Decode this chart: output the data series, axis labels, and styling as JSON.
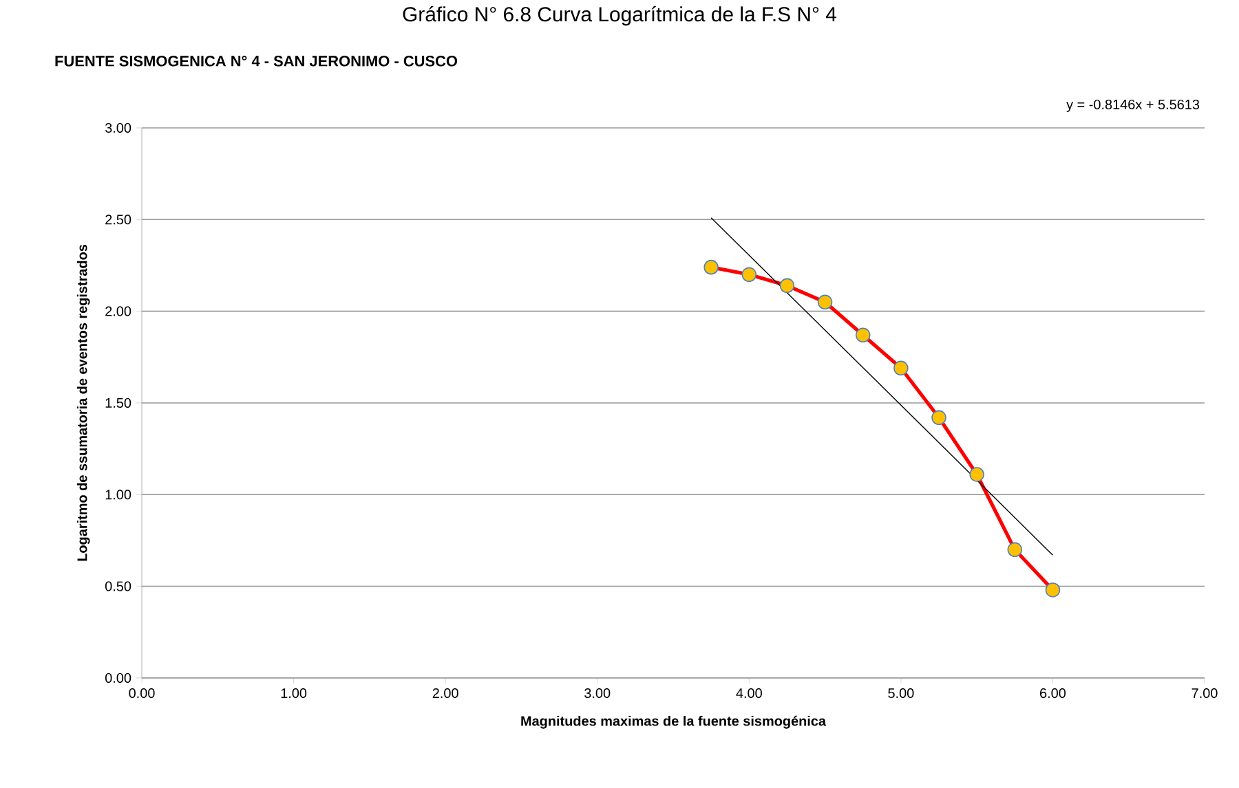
{
  "chart_data": {
    "type": "line",
    "title": "FUENTE SISMOGENICA N° 4 - SAN JERONIMO - CUSCO",
    "subtitle": "Gráfico N° 6.8 Curva Logarítmica de la F.S N° 4",
    "xlabel": "Magnitudes maximas de la  fuente sismogénica",
    "ylabel": "Logaritmo de ssumatoria de eventos registrados",
    "annotations": [
      "y = -0.8146x + 5.5613"
    ],
    "xlim": [
      0,
      7
    ],
    "ylim": [
      0,
      3
    ],
    "xticks": [
      {
        "value": 0,
        "label": "0.00"
      },
      {
        "value": 1,
        "label": "1.00"
      },
      {
        "value": 2,
        "label": "2.00"
      },
      {
        "value": 3,
        "label": "3.00"
      },
      {
        "value": 4,
        "label": "4.00"
      },
      {
        "value": 5,
        "label": "5.00"
      },
      {
        "value": 6,
        "label": "6.00"
      },
      {
        "value": 7,
        "label": "7.00"
      }
    ],
    "yticks": [
      {
        "value": 0,
        "label": "0.00"
      },
      {
        "value": 0.5,
        "label": "0.50"
      },
      {
        "value": 1,
        "label": "1.00"
      },
      {
        "value": 1.5,
        "label": "1.50"
      },
      {
        "value": 2,
        "label": "2.00"
      },
      {
        "value": 2.5,
        "label": "2.50"
      },
      {
        "value": 3,
        "label": "3.00"
      }
    ],
    "grid": "y",
    "series": [
      {
        "color": "#ff0000",
        "marker": "circle",
        "x": [
          3.75,
          4.0,
          4.25,
          4.5,
          4.75,
          5.0,
          5.25,
          5.5,
          5.75,
          6.0
        ],
        "values": [
          2.24,
          2.2,
          2.14,
          2.05,
          1.87,
          1.69,
          1.42,
          1.11,
          0.7,
          0.48
        ]
      },
      {
        "type": "line",
        "color": "#000000",
        "marker": "none",
        "x": [
          3.75,
          6.0
        ],
        "values": [
          2.51,
          0.67
        ]
      }
    ]
  }
}
